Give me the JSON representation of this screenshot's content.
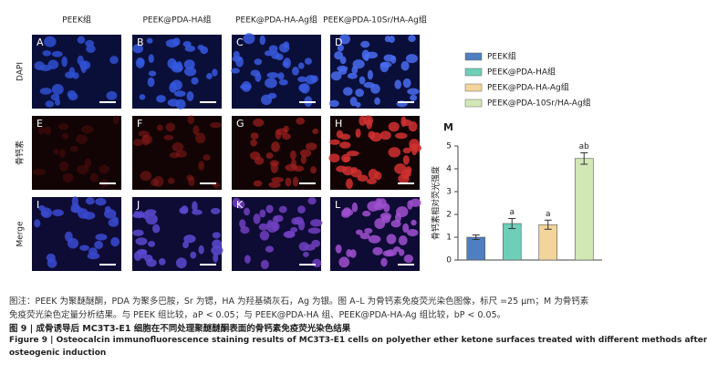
{
  "figure": {
    "columns": [
      "PEEK组",
      "PEEK@PDA-HA组",
      "PEEK@PDA-HA-Ag组",
      "PEEK@PDA-10Sr/HA-Ag组"
    ],
    "rows": [
      "DAPI",
      "骨钙素",
      "Merge"
    ],
    "panels": [
      [
        "A",
        "B",
        "C",
        "D"
      ],
      [
        "E",
        "F",
        "G",
        "H"
      ],
      [
        "I",
        "J",
        "K",
        "L"
      ]
    ],
    "chart_label": "M"
  },
  "chart_data": {
    "type": "bar",
    "y_label": "骨钙素相对荧光强度",
    "categories": [
      "PEEK组",
      "PEEK@PDA-HA组",
      "PEEK@PDA-HA-Ag组",
      "PEEK@PDA-10Sr/HA-Ag组"
    ],
    "values": [
      1.0,
      1.6,
      1.55,
      4.45
    ],
    "errors": [
      0.1,
      0.22,
      0.2,
      0.25
    ],
    "colors": [
      "#4f7fc0",
      "#6dcfb8",
      "#f3d49a",
      "#d2e8b4"
    ],
    "significance": [
      null,
      "a",
      "a",
      "ab"
    ],
    "ylim": [
      0,
      5
    ],
    "yticks": [
      0,
      1,
      2,
      3,
      4,
      5
    ]
  },
  "caption": {
    "note": [
      "图注：PEEK 为聚醚醚酮，PDA 为聚多巴胺，Sr 为锶，HA 为羟基磷灰石，Ag 为银。图 A–L 为骨钙素免疫荧光染色图像，标尺 =25 μm；M 为骨钙素",
      "免疫荧光染色定量分析结果。与 PEEK 组比较，aP < 0.05；与 PEEK@PDA-HA 组、PEEK@PDA-HA-Ag 组比较，bP < 0.05。"
    ],
    "title_cn": "图 9 | 成骨诱导后 MC3T3-E1 细胞在不同处理聚醚醚酮表面的骨钙素免疫荧光染色结果",
    "title_en": [
      "Figure 9 | Osteocalcin immunofluorescence staining results of MC3T3-E1 cells on polyether ether ketone surfaces treated with different methods after",
      "osteogenic induction"
    ]
  }
}
